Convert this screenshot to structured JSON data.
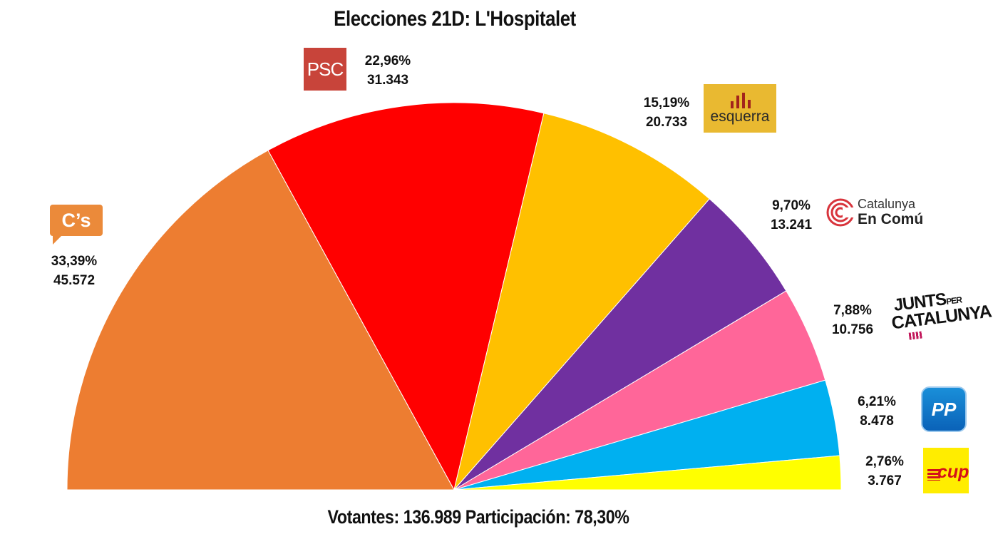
{
  "chart_data": {
    "type": "pie",
    "variant": "semicircle",
    "title": "Elecciones 21D: L'Hospitalet",
    "footer": "Votantes: 136.989 Participación: 78,30%",
    "slices": [
      {
        "party": "C's",
        "percent_label": "33,39%",
        "votes_label": "45.572",
        "percent": 33.39,
        "votes": 45572,
        "color": "#ED7D31",
        "logo": "cs-logo",
        "logo_text": "C’s"
      },
      {
        "party": "PSC",
        "percent_label": "22,96%",
        "votes_label": "31.343",
        "percent": 22.96,
        "votes": 31343,
        "color": "#FF0000",
        "logo": "psc-logo",
        "logo_text": "PSC"
      },
      {
        "party": "esquerra",
        "percent_label": "15,19%",
        "votes_label": "20.733",
        "percent": 15.19,
        "votes": 20733,
        "color": "#FFC000",
        "logo": "esquerra-logo",
        "logo_text": "esquerra"
      },
      {
        "party": "Catalunya En Comú",
        "percent_label": "9,70%",
        "votes_label": "13.241",
        "percent": 9.7,
        "votes": 13241,
        "color": "#7030A0",
        "logo": "catalunya-en-comu-logo",
        "logo_text": "Catalunya En Comú"
      },
      {
        "party": "Junts per Catalunya",
        "percent_label": "7,88%",
        "votes_label": "10.756",
        "percent": 7.88,
        "votes": 10756,
        "color": "#FF6699",
        "logo": "junts-per-catalunya-logo",
        "logo_text": "JUNTS PER CATALUNYA"
      },
      {
        "party": "PP",
        "percent_label": "6,21%",
        "votes_label": "8.478",
        "percent": 6.21,
        "votes": 8478,
        "color": "#00B0F0",
        "logo": "pp-logo",
        "logo_text": "PP"
      },
      {
        "party": "CUP",
        "percent_label": "2,76%",
        "votes_label": "3.767",
        "percent": 2.76,
        "votes": 3767,
        "color": "#FFFF00",
        "logo": "cup-logo",
        "logo_text": "cup"
      }
    ]
  }
}
